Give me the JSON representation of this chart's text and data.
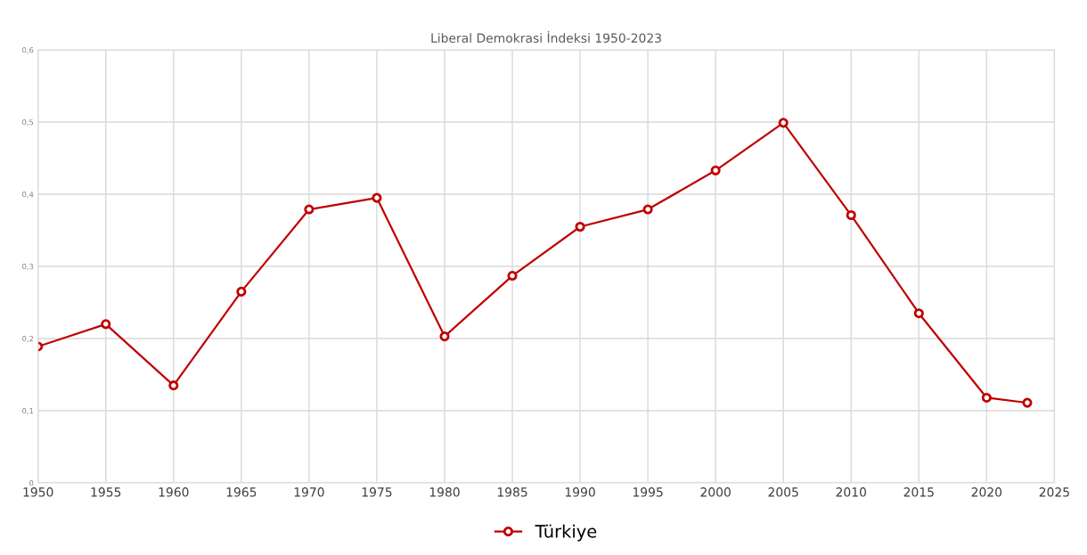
{
  "chart_data": {
    "type": "line",
    "title": "Liberal Demokrasi İndeksi 1950-2023",
    "x": [
      1950,
      1955,
      1960,
      1965,
      1970,
      1975,
      1980,
      1985,
      1990,
      1995,
      2000,
      2005,
      2010,
      2015,
      2020,
      2023
    ],
    "series": [
      {
        "name": "Türkiye",
        "color": "#c00000",
        "values": [
          0.189,
          0.22,
          0.135,
          0.265,
          0.379,
          0.395,
          0.203,
          0.287,
          0.355,
          0.379,
          0.433,
          0.499,
          0.371,
          0.235,
          0.118,
          0.111
        ]
      }
    ],
    "xlim": [
      1950,
      2025
    ],
    "xticks": [
      1950,
      1955,
      1960,
      1965,
      1970,
      1975,
      1980,
      1985,
      1990,
      1995,
      2000,
      2005,
      2010,
      2015,
      2020,
      2025
    ],
    "ylim": [
      0,
      0.6
    ],
    "yticks": [
      0,
      {
        "value": 0.1,
        "label": "0,1"
      },
      {
        "value": 0.2,
        "label": "0,2"
      },
      {
        "value": 0.3,
        "label": "0,3"
      },
      {
        "value": 0.4,
        "label": "0,4"
      },
      {
        "value": 0.5,
        "label": "0,5"
      },
      {
        "value": 0.6,
        "label": "0,6"
      }
    ],
    "grid": true,
    "legend": "bottom",
    "marker": "circle",
    "line_style": "solid"
  }
}
